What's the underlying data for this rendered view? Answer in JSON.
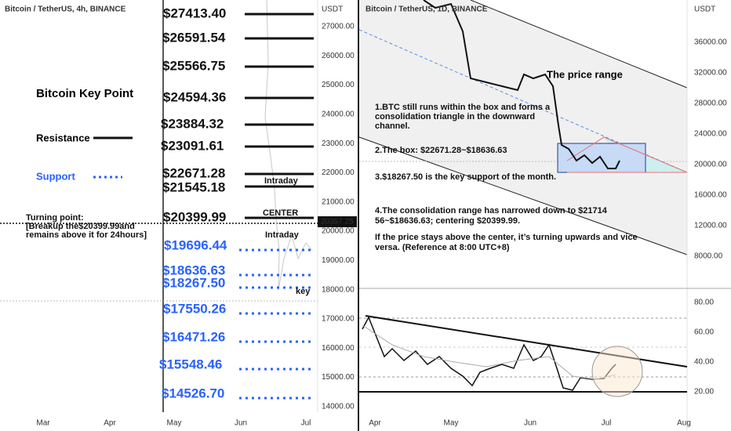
{
  "left_panel": {
    "symbol": "Bitcoin / TetherUS, 4h, BINANCE",
    "title": "Bitcoin Key Point",
    "legend": {
      "resistance": "Resistance",
      "support": "Support"
    },
    "resistance_levels": [
      "$27413.40",
      "$26591.54",
      "$25566.75",
      "$24594.36",
      "$23884.32",
      "$23091.61",
      "$22671.28",
      "$21545.18",
      "$20399.99"
    ],
    "support_levels": [
      "$19696.44",
      "$18636.63",
      "$18267.50",
      "$17550.26",
      "$16471.26",
      "$15548.46",
      "$14526.70"
    ],
    "annotations": {
      "intraday_top": "Intraday",
      "center": "CENTER",
      "intraday_bottom": "Intraday",
      "key": "key"
    },
    "turning_point": [
      "Turning point:",
      "[Breakup the$20399.99and",
      "remains above it for 24hours]"
    ],
    "axis_unit": "USDT",
    "axis_labels": [
      "27000.00",
      "26000.00",
      "25000.00",
      "24000.00",
      "23000.00",
      "22000.00",
      "21000.00",
      "20000.00",
      "19000.00",
      "18000.00",
      "17000.00",
      "16000.00",
      "15000.00",
      "14000.00"
    ],
    "current_price": "20357.25",
    "x_labels": [
      "Mar",
      "Apr",
      "May",
      "Jun",
      "Jul"
    ]
  },
  "right_panel": {
    "symbol": "Bitcoin / TetherUS, 1D, BINANCE",
    "price_range_label": "The price range",
    "notes": [
      "1.BTC still runs within the box and forms a",
      "consolidation triangle in the downward",
      "channel.",
      "2.The box: $22671.28~$18636.63",
      "3.$18267.50 is the key support of the month.",
      "4.The consolidation range has narrowed down to $21714",
      "56~$18636.63; centering $20399.99.",
      "If the price stays above the center, it’s turning upwards and vice",
      "versa. (Reference at 8:00 UTC+8)"
    ],
    "axis_unit": "USDT",
    "axis_labels": [
      "36000.00",
      "32000.00",
      "28000.00",
      "24000.00",
      "20000.00",
      "16000.00",
      "12000.00",
      "8000.00"
    ],
    "indicator_labels": [
      "80.00",
      "60.00",
      "40.00",
      "20.00"
    ],
    "x_labels": [
      "Apr",
      "May",
      "Jun",
      "Jul",
      "Aug"
    ]
  }
}
